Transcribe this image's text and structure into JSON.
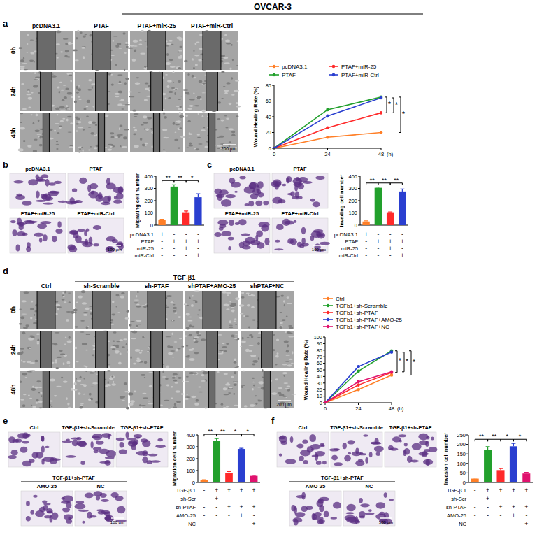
{
  "title": "OVCAR-3",
  "image_panels": [
    {
      "letter": "a",
      "columns": [
        "pcDNA3.1",
        "PTAF",
        "PTAF+miR-25",
        "PTAF+miR-Ctrl"
      ],
      "rows": [
        "0h",
        "24h",
        "48h"
      ],
      "scale_bar": "200 μm"
    },
    {
      "letter": "b",
      "labels": [
        "pcDNA3.1",
        "PTAF",
        "PTAF+miR-25",
        "PTAF+miR-Ctrl"
      ],
      "scale_bar": "100 μm"
    },
    {
      "letter": "c",
      "labels": [
        "pcDNA3.1",
        "PTAF",
        "PTAF+miR-25",
        "PTAF+miR-Ctrl"
      ],
      "scale_bar": "100 μm"
    },
    {
      "letter": "d",
      "group_label": "TGF-β1",
      "columns": [
        "Ctrl",
        "sh-Scramble",
        "sh-PTAF",
        "shPTAF+AMO-25",
        "shPTAF+NC"
      ],
      "rows": [
        "0h",
        "24h",
        "48h"
      ],
      "scale_bar": "200 μm"
    },
    {
      "letter": "e",
      "labels": [
        "Ctrl",
        "TGF-β1+sh-Scramble",
        "TGF-β1+sh-PTAF",
        "AMO-25",
        "NC"
      ],
      "group_label": "TGF-β1+sh-PTAF",
      "scale_bar": "100 μm"
    },
    {
      "letter": "f",
      "labels": [
        "Ctrl",
        "TGF-β1+sh-Scramble",
        "TGF-β1+sh-PTAF",
        "AMO-25",
        "NC"
      ],
      "group_label": "TGF-β1+sh-PTAF",
      "scale_bar": "100 μm"
    }
  ],
  "chart_data": [
    {
      "type": "line",
      "ylabel": "Wound Healing Rate (%)",
      "xlabel": "(h)",
      "x": [
        0,
        24,
        48
      ],
      "xlim": [
        0,
        48
      ],
      "xticks": [
        0,
        24,
        48
      ],
      "ylim": [
        0,
        80
      ],
      "yticks": [
        0,
        20,
        40,
        60,
        80
      ],
      "grid": false,
      "legend": "top",
      "marker": "circle",
      "series": [
        {
          "name": "pcDNA3.1",
          "color": "#ff7f27",
          "values": [
            0,
            14,
            20
          ]
        },
        {
          "name": "PTAF",
          "color": "#22a02c",
          "values": [
            0,
            49,
            65
          ]
        },
        {
          "name": "PTAF+miR-25",
          "color": "#ff2a2a",
          "values": [
            0,
            26,
            45
          ]
        },
        {
          "name": "PTAF+miR-Ctrl",
          "color": "#2a3fd0",
          "values": [
            0,
            41,
            64
          ]
        }
      ],
      "annotations": [
        {
          "text": "*",
          "between": [
            "PTAF",
            "PTAF+miR-25"
          ]
        },
        {
          "text": "*",
          "between": [
            "PTAF+miR-25",
            "PTAF+miR-Ctrl"
          ]
        },
        {
          "text": "*",
          "between": [
            "pcDNA3.1",
            "PTAF"
          ]
        }
      ]
    },
    {
      "type": "bar",
      "ylabel": "Migrating cell number",
      "categories": [
        null,
        null,
        null,
        null
      ],
      "values": [
        40,
        315,
        105,
        228
      ],
      "errors": [
        8,
        15,
        10,
        28
      ],
      "colors": [
        "#ff7f27",
        "#22a02c",
        "#ff2a2a",
        "#2a3fd0"
      ],
      "ylim": [
        0,
        400
      ],
      "yticks": [
        0,
        100,
        200,
        300,
        400
      ],
      "grid": false,
      "conditions": [
        {
          "label": "pcDNA3.1",
          "marks": [
            "+",
            "-",
            "-",
            "-"
          ]
        },
        {
          "label": "PTAF",
          "marks": [
            "-",
            "+",
            "+",
            "+"
          ]
        },
        {
          "label": "miR-25",
          "marks": [
            "-",
            "-",
            "+",
            "-"
          ]
        },
        {
          "label": "miR-Ctrl",
          "marks": [
            "-",
            "-",
            "-",
            "+"
          ]
        }
      ],
      "annotations": [
        {
          "text": "**",
          "between": [
            0,
            1
          ]
        },
        {
          "text": "**",
          "between": [
            1,
            2
          ]
        },
        {
          "text": "*",
          "between": [
            2,
            3
          ]
        }
      ]
    },
    {
      "type": "bar",
      "ylabel": "Invading cell number",
      "categories": [
        null,
        null,
        null,
        null
      ],
      "values": [
        30,
        305,
        105,
        275
      ],
      "errors": [
        5,
        5,
        3,
        20
      ],
      "colors": [
        "#ff7f27",
        "#22a02c",
        "#ff2a2a",
        "#2a3fd0"
      ],
      "ylim": [
        0,
        400
      ],
      "yticks": [
        0,
        100,
        200,
        300,
        400
      ],
      "grid": false,
      "conditions": [
        {
          "label": "pcDNA3.1",
          "marks": [
            "+",
            "-",
            "-",
            "-"
          ]
        },
        {
          "label": "PTAF",
          "marks": [
            "-",
            "+",
            "+",
            "+"
          ]
        },
        {
          "label": "miR-25",
          "marks": [
            "-",
            "-",
            "+",
            "-"
          ]
        },
        {
          "label": "miR-Ctrl",
          "marks": [
            "-",
            "-",
            "-",
            "+"
          ]
        }
      ],
      "annotations": [
        {
          "text": "**",
          "between": [
            0,
            1
          ]
        },
        {
          "text": "**",
          "between": [
            1,
            2
          ]
        },
        {
          "text": "**",
          "between": [
            2,
            3
          ]
        }
      ]
    },
    {
      "type": "line",
      "ylabel": "Wound Healing Rate (%)",
      "xlabel": "(h)",
      "x": [
        0,
        24,
        48
      ],
      "xlim": [
        0,
        48
      ],
      "xticks": [
        0,
        24,
        48
      ],
      "ylim": [
        0,
        100
      ],
      "yticks": [
        0,
        10,
        20,
        30,
        40,
        50,
        60,
        70,
        80,
        90,
        100
      ],
      "grid": false,
      "legend": "top",
      "marker": "circle",
      "series": [
        {
          "name": "Ctrl",
          "color": "#ff7f27",
          "values": [
            0,
            20,
            42
          ]
        },
        {
          "name": "TGFb1+sh-Scramble",
          "color": "#22a02c",
          "values": [
            0,
            48,
            79
          ]
        },
        {
          "name": "TGFb1+sh-PTAF",
          "color": "#ff2a2a",
          "values": [
            0,
            27,
            46
          ]
        },
        {
          "name": "TGFb1+sh-PTAF+AMO-25",
          "color": "#2a3fd0",
          "values": [
            0,
            55,
            77
          ]
        },
        {
          "name": "TGFb1+sh-PTAF+NC",
          "color": "#e0126e",
          "values": [
            0,
            32,
            47
          ]
        }
      ],
      "annotations": [
        {
          "text": "*",
          "between": [
            "TGFb1+sh-Scramble",
            "TGFb1+sh-PTAF"
          ]
        },
        {
          "text": "*",
          "between": [
            "TGFb1+sh-PTAF+AMO-25",
            "TGFb1+sh-PTAF+NC"
          ]
        },
        {
          "text": "*",
          "between": [
            "Ctrl",
            "TGFb1+sh-Scramble"
          ]
        }
      ]
    },
    {
      "type": "bar",
      "ylabel": "Migration cell number",
      "categories": [
        null,
        null,
        null,
        null,
        null
      ],
      "values": [
        20,
        350,
        80,
        282,
        55
      ],
      "errors": [
        3,
        20,
        12,
        6,
        5
      ],
      "colors": [
        "#ff7f27",
        "#22a02c",
        "#ff2a2a",
        "#2a3fd0",
        "#e0126e"
      ],
      "ylim": [
        0,
        400
      ],
      "yticks": [
        0,
        100,
        200,
        300,
        400
      ],
      "grid": false,
      "conditions": [
        {
          "label": "TGF-β 1",
          "marks": [
            "-",
            "+",
            "+",
            "+",
            "+"
          ]
        },
        {
          "label": "sh-Scr",
          "marks": [
            "-",
            "+",
            "-",
            "-",
            "-"
          ]
        },
        {
          "label": "sh-PTAF",
          "marks": [
            "-",
            "-",
            "+",
            "+",
            "+"
          ]
        },
        {
          "label": "AMO-25",
          "marks": [
            "-",
            "-",
            "-",
            "+",
            "-"
          ]
        },
        {
          "label": "NC",
          "marks": [
            "-",
            "-",
            "-",
            "-",
            "+"
          ]
        }
      ],
      "annotations": [
        {
          "text": "**",
          "between": [
            0,
            1
          ]
        },
        {
          "text": "**",
          "between": [
            1,
            2
          ]
        },
        {
          "text": "*",
          "between": [
            2,
            3
          ]
        },
        {
          "text": "*",
          "between": [
            3,
            4
          ]
        }
      ]
    },
    {
      "type": "bar",
      "ylabel": "Invasion cell number",
      "categories": [
        null,
        null,
        null,
        null,
        null
      ],
      "values": [
        20,
        170,
        65,
        190,
        47
      ],
      "errors": [
        3,
        18,
        8,
        15,
        6
      ],
      "colors": [
        "#ff7f27",
        "#22a02c",
        "#ff2a2a",
        "#2a3fd0",
        "#e0126e"
      ],
      "ylim": [
        0,
        250
      ],
      "yticks": [
        0,
        50,
        100,
        150,
        200,
        250
      ],
      "grid": false,
      "conditions": [
        {
          "label": "TGF-β 1",
          "marks": [
            "-",
            "+",
            "+",
            "+",
            "+"
          ]
        },
        {
          "label": "sh-Scr",
          "marks": [
            "-",
            "+",
            "-",
            "-",
            "-"
          ]
        },
        {
          "label": "sh-PTAF",
          "marks": [
            "-",
            "-",
            "+",
            "+",
            "+"
          ]
        },
        {
          "label": "AMO-25",
          "marks": [
            "-",
            "-",
            "-",
            "+",
            "-"
          ]
        },
        {
          "label": "NC",
          "marks": [
            "-",
            "-",
            "-",
            "-",
            "+"
          ]
        }
      ],
      "annotations": [
        {
          "text": "**",
          "between": [
            0,
            1
          ]
        },
        {
          "text": "**",
          "between": [
            1,
            2
          ]
        },
        {
          "text": "*",
          "between": [
            2,
            3
          ]
        },
        {
          "text": "*",
          "between": [
            3,
            4
          ]
        }
      ]
    }
  ]
}
